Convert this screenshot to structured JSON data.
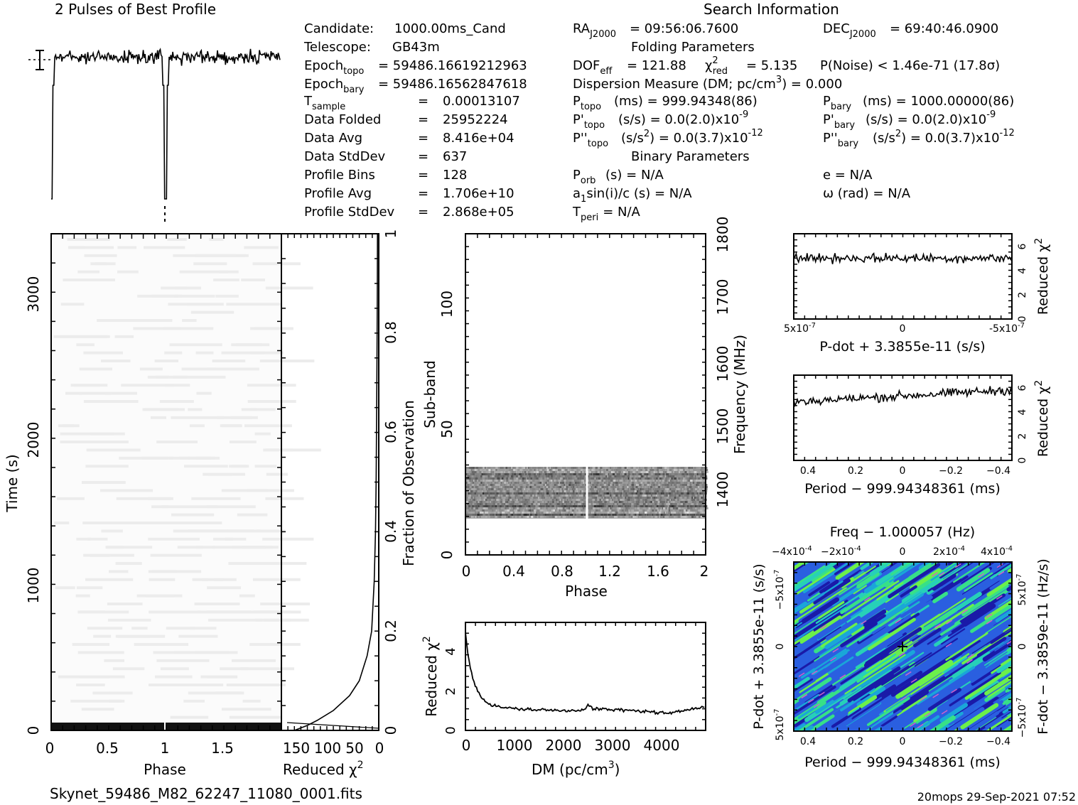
{
  "header": {
    "left_title": "2 Pulses of Best Profile",
    "right_title": "Search Information",
    "filename": "Skynet_59486_M82_62247_11080_0001.fits",
    "footer": "20mops 29-Sep-2021 07:52"
  },
  "info": {
    "candidate_label": "Candidate:",
    "candidate_value": "1000.00ms_Cand",
    "telescope_label": "Telescope:",
    "telescope_value": "GB43m",
    "epoch_topo_label": "Epoch",
    "epoch_topo_sub": "topo",
    "epoch_topo_value": "= 59486.16619212963",
    "epoch_bary_label": "Epoch",
    "epoch_bary_sub": "bary",
    "epoch_bary_value": "= 59486.16562847618",
    "tsample_label": "T",
    "tsample_sub": "sample",
    "tsample_eq": "=",
    "tsample_value": "0.00013107",
    "data_folded_label": "Data Folded",
    "data_folded_eq": "=",
    "data_folded_value": "25952224",
    "data_avg_label": "Data Avg",
    "data_avg_eq": "=",
    "data_avg_value": "8.416e+04",
    "data_std_label": "Data StdDev",
    "data_std_eq": "=",
    "data_std_value": "637",
    "prof_bins_label": "Profile Bins",
    "prof_bins_eq": "=",
    "prof_bins_value": "128",
    "prof_avg_label": "Profile Avg",
    "prof_avg_eq": "=",
    "prof_avg_value": "1.706e+10",
    "prof_std_label": "Profile StdDev",
    "prof_std_eq": "=",
    "prof_std_value": "2.868e+05"
  },
  "search": {
    "ra_label": "RA",
    "ra_sub": "J2000",
    "ra_value": "= 09:56:06.7600",
    "dec_label": "DEC",
    "dec_sub": "J2000",
    "dec_value": "= 69:40:46.0900",
    "folding_header": "Folding Parameters",
    "dof_label": "DOF",
    "dof_sub": "eff",
    "dof_value": "= 121.88",
    "chi_label": "χ",
    "chi_sup": "2",
    "chi_sub": "red",
    "chi_value": "= 5.135",
    "pnoise": "P(Noise) < 1.46e-71   (17.8σ)",
    "dm_text": "Dispersion Measure (DM; pc/cm",
    "dm_sup": "3",
    "dm_value": ") = 0.000",
    "ptopo_label": "P",
    "ptopo_sub": "topo",
    "ptopo_value": "(ms) =  999.94348(86)",
    "pbary_label": "P",
    "pbary_sub": "bary",
    "pbary_value": "(ms) =  1000.00000(86)",
    "pdtopo_label": "P'",
    "pdtopo_sub": "topo",
    "pdtopo_value": "(s/s) = 0.0(2.0)x10",
    "pdtopo_exp": "-9",
    "pdbary_label": "P'",
    "pdbary_sub": "bary",
    "pdbary_value": "(s/s) = 0.0(2.0)x10",
    "pdbary_exp": "-9",
    "pddtopo_label": "P''",
    "pddtopo_sub": "topo",
    "pddtopo_value": "(s/s",
    "pddtopo_sup": "2",
    "pddtopo_value2": ") = 0.0(3.7)x10",
    "pddtopo_exp": "-12",
    "pddbary_label": "P''",
    "pddbary_sub": "bary",
    "pddbary_value": "(s/s",
    "pddbary_sup": "2",
    "pddbary_value2": ") = 0.0(3.7)x10",
    "pddbary_exp": "-12",
    "binary_header": "Binary Parameters",
    "porb_label": "P",
    "porb_sub": "orb",
    "porb_value": "(s) = N/A",
    "e_value": "e = N/A",
    "a1_label": "a",
    "a1_sub": "1",
    "a1_value": "sin(i)/c (s) = N/A",
    "omega_value": "ω (rad) = N/A",
    "tperi_label": "T",
    "tperi_sub": "peri",
    "tperi_value": "= N/A"
  },
  "chart_data": [
    {
      "id": "profile",
      "type": "line",
      "title": "2 Pulses of Best Profile",
      "xlim": [
        0,
        2
      ],
      "pulse_phase": [
        0.0,
        1.0
      ],
      "grid": false
    },
    {
      "id": "time_phase",
      "type": "heatmap",
      "xlabel": "Phase",
      "ylabel": "Time (s)",
      "xlim": [
        0,
        2
      ],
      "ylim": [
        0,
        3400
      ],
      "xticks": [
        "0",
        "0.5",
        "1",
        "1.5"
      ],
      "yticks": [
        "0",
        "1000",
        "2000",
        "3000"
      ]
    },
    {
      "id": "time_chi2",
      "type": "line",
      "xlabel": "Reduced χ",
      "xlabel_sup": "2",
      "ylabel_right": "Fraction of Observation",
      "xticks": [
        "150",
        "100",
        "50",
        "0"
      ],
      "yticks": [
        "0",
        "0.2",
        "0.4",
        "0.6",
        "0.8",
        "1"
      ],
      "fraction": [
        0.0,
        0.01,
        0.02,
        0.04,
        0.07,
        0.1,
        0.15,
        0.2,
        0.3,
        0.4,
        0.5,
        0.6,
        0.7,
        0.8,
        0.9,
        1.0
      ],
      "chi2": [
        130,
        110,
        95,
        70,
        45,
        30,
        18,
        11,
        7,
        5,
        4,
        3.5,
        3,
        2.5,
        2.2,
        2
      ]
    },
    {
      "id": "subband_phase",
      "type": "heatmap",
      "xlabel": "Phase",
      "ylabel": "Sub-band",
      "ylabel_right": "Frequency (MHz)",
      "xlim": [
        0,
        2
      ],
      "ylim": [
        0,
        128
      ],
      "freq_lim": [
        1300,
        1800
      ],
      "xticks": [
        "0",
        "0.4",
        "0.8",
        "1.2",
        "1.6",
        "2"
      ],
      "yticks": [
        "0",
        "50",
        "100"
      ],
      "freq_ticks": [
        "1400",
        "1500",
        "1600",
        "1700",
        "1800"
      ],
      "active_subbands": [
        14,
        35
      ]
    },
    {
      "id": "dm_chi2",
      "type": "line",
      "xlabel": "DM (pc/cm",
      "xlabel_sup": "3",
      "xlabel_end": ")",
      "ylabel": "Reduced χ",
      "ylabel_sup": "2",
      "xlim": [
        0,
        4900
      ],
      "ylim": [
        0,
        5.5
      ],
      "xticks": [
        "0",
        "1000",
        "2000",
        "3000",
        "4000"
      ],
      "yticks": [
        "0",
        "2",
        "4"
      ],
      "dm": [
        0,
        50,
        100,
        150,
        200,
        300,
        400,
        500,
        700,
        1000,
        1500,
        2000,
        2400,
        2500,
        2600,
        3000,
        3500,
        4000,
        4200,
        4500,
        4900
      ],
      "chi2": [
        5.0,
        3.9,
        3.2,
        2.7,
        2.3,
        1.8,
        1.5,
        1.3,
        1.2,
        1.1,
        1.05,
        1.0,
        1.05,
        1.3,
        1.1,
        1.05,
        1.0,
        0.9,
        0.85,
        1.05,
        1.25
      ]
    },
    {
      "id": "pdot_chi2",
      "type": "line",
      "xlabel": "P-dot + 3.3855e-11 (s/s)",
      "ylabel_right": "Reduced χ",
      "ylabel_sup": "2",
      "xticks": [
        "5x10",
        "0",
        "-5x10"
      ],
      "xtick_exp": "-7",
      "yticks": [
        "0",
        "2",
        "4",
        "6"
      ],
      "ylim": [
        0,
        7
      ],
      "mean_level": 5.0
    },
    {
      "id": "period_chi2",
      "type": "line",
      "xlabel": "Period − 999.94348361 (ms)",
      "ylabel_right": "Reduced χ",
      "ylabel_sup": "2",
      "xticks": [
        "0.4",
        "0.2",
        "0",
        "−0.2",
        "−0.4"
      ],
      "yticks": [
        "0",
        "2",
        "4",
        "6"
      ],
      "ylim": [
        0,
        7
      ],
      "mean_level": 5.3
    },
    {
      "id": "p_pdot_plane",
      "type": "heatmap",
      "title": "Freq − 1.000057 (Hz)",
      "xlabel": "Period − 999.94348361 (ms)",
      "ylabel": "P-dot + 3.3855e-11 (s/s)",
      "ylabel_right": "F-dot − 3.3859e-11 (Hz/s)",
      "xticks": [
        "0.4",
        "0.2",
        "0",
        "−0.2",
        "−0.4"
      ],
      "top_ticks": [
        "−4x10",
        "−2x10",
        "0",
        "2x10",
        "4x10"
      ],
      "top_exp": "-4",
      "left_ticks": [
        "−5x10",
        "0",
        "5x10"
      ],
      "left_exp": "-7",
      "right_ticks": [
        "5x10",
        "0",
        "−5x10"
      ],
      "right_exp": "-7",
      "colors": [
        "#1a1aa8",
        "#2a5fe0",
        "#1aa6d8",
        "#27d0b8",
        "#37e088",
        "#6cf04a"
      ]
    }
  ]
}
